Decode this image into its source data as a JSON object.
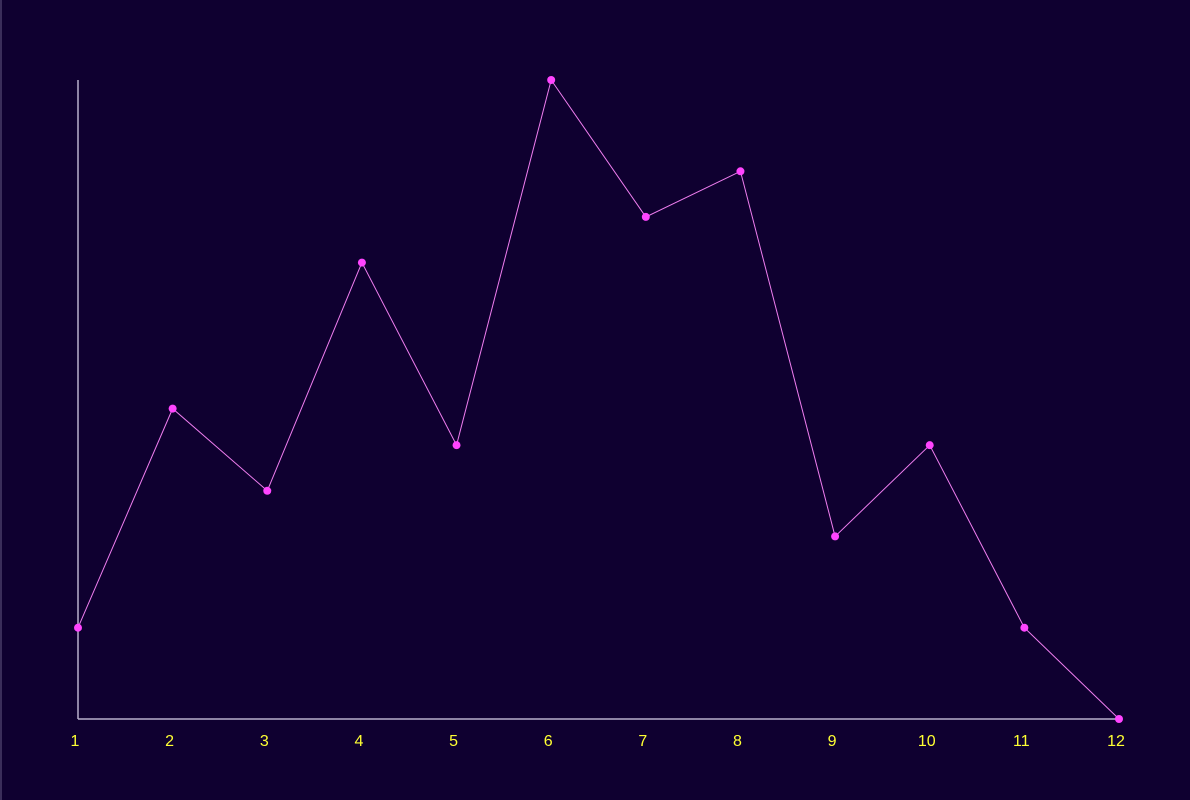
{
  "chart_data": {
    "type": "line",
    "categories": [
      "1",
      "2",
      "3",
      "4",
      "5",
      "6",
      "7",
      "8",
      "9",
      "10",
      "11",
      "12"
    ],
    "series": [
      {
        "values": [
          10,
          34,
          25,
          50,
          30,
          70,
          55,
          60,
          20,
          30,
          10,
          0
        ]
      }
    ],
    "ylim": [
      0,
      70
    ],
    "grid": false,
    "colors": {
      "background": "#0f0030",
      "axis": "#b9b0cc",
      "line": "#f07ef0",
      "point": "#ff44ff",
      "tick_label": "#ffff33"
    }
  }
}
